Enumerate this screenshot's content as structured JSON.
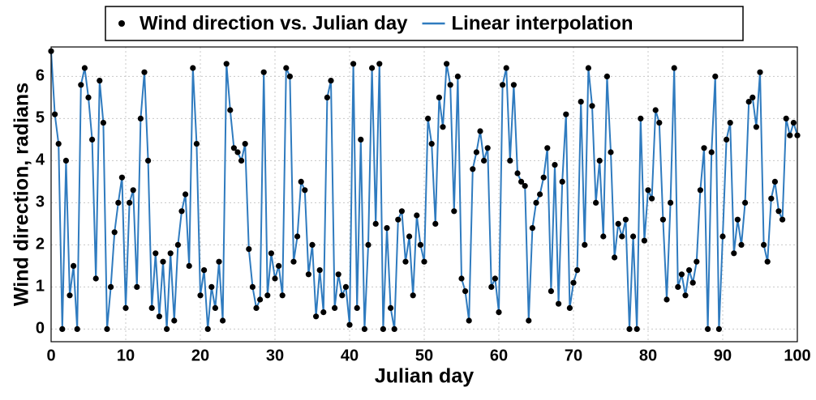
{
  "chart_data": {
    "type": "scatter-line",
    "xlabel": "Julian day",
    "ylabel": "Wind direction, radians",
    "legend": [
      {
        "name": "Wind direction vs. Julian day",
        "color": "#000000",
        "marker": "dot"
      },
      {
        "name": "Linear interpolation",
        "color": "#2f7bbf",
        "marker": "line"
      }
    ],
    "xlim": [
      0,
      100
    ],
    "ylim": [
      -0.3,
      6.7
    ],
    "xticks": [
      0,
      10,
      20,
      30,
      40,
      50,
      60,
      70,
      80,
      90,
      100
    ],
    "yticks": [
      0,
      1,
      2,
      3,
      4,
      5,
      6
    ],
    "grid": true,
    "x": [
      0,
      0.5,
      1,
      1.5,
      2,
      2.5,
      3,
      3.5,
      4,
      4.5,
      5,
      5.5,
      6,
      6.5,
      7,
      7.5,
      8,
      8.5,
      9,
      9.5,
      10,
      10.5,
      11,
      11.5,
      12,
      12.5,
      13,
      13.5,
      14,
      14.5,
      15,
      15.5,
      16,
      16.5,
      17,
      17.5,
      18,
      18.5,
      19,
      19.5,
      20,
      20.5,
      21,
      21.5,
      22,
      22.5,
      23,
      23.5,
      24,
      24.5,
      25,
      25.5,
      26,
      26.5,
      27,
      27.5,
      28,
      28.5,
      29,
      29.5,
      30,
      30.5,
      31,
      31.5,
      32,
      32.5,
      33,
      33.5,
      34,
      34.5,
      35,
      35.5,
      36,
      36.5,
      37,
      37.5,
      38,
      38.5,
      39,
      39.5,
      40,
      40.5,
      41,
      41.5,
      42,
      42.5,
      43,
      43.5,
      44,
      44.5,
      45,
      45.5,
      46,
      46.5,
      47,
      47.5,
      48,
      48.5,
      49,
      49.5,
      50,
      50.5,
      51,
      51.5,
      52,
      52.5,
      53,
      53.5,
      54,
      54.5,
      55,
      55.5,
      56,
      56.5,
      57,
      57.5,
      58,
      58.5,
      59,
      59.5,
      60,
      60.5,
      61,
      61.5,
      62,
      62.5,
      63,
      63.5,
      64,
      64.5,
      65,
      65.5,
      66,
      66.5,
      67,
      67.5,
      68,
      68.5,
      69,
      69.5,
      70,
      70.5,
      71,
      71.5,
      72,
      72.5,
      73,
      73.5,
      74,
      74.5,
      75,
      75.5,
      76,
      76.5,
      77,
      77.5,
      78,
      78.5,
      79,
      79.5,
      80,
      80.5,
      81,
      81.5,
      82,
      82.5,
      83,
      83.5,
      84,
      84.5,
      85,
      85.5,
      86,
      86.5,
      87,
      87.5,
      88,
      88.5,
      89,
      89.5,
      90,
      90.5,
      91,
      91.5,
      92,
      92.5,
      93,
      93.5,
      94,
      94.5,
      95,
      95.5,
      96,
      96.5,
      97,
      97.5,
      98,
      98.5,
      99,
      99.5,
      100
    ],
    "values": [
      6.6,
      5.1,
      4.4,
      0,
      4,
      0.8,
      1.5,
      0,
      5.8,
      6.2,
      5.5,
      4.5,
      1.2,
      5.9,
      4.9,
      0,
      1,
      2.3,
      3,
      3.6,
      0.5,
      3,
      3.3,
      1,
      5,
      6.1,
      4,
      0.5,
      1.8,
      0.3,
      1.6,
      0,
      1.8,
      0.2,
      2,
      2.8,
      3.2,
      1.5,
      6.2,
      4.4,
      0.8,
      1.4,
      0,
      1,
      0.5,
      1.6,
      0.2,
      6.3,
      5.2,
      4.3,
      4.2,
      4,
      4.4,
      1.9,
      1,
      0.5,
      0.7,
      6.1,
      0.8,
      1.8,
      1.2,
      1.5,
      0.8,
      6.2,
      6,
      1.6,
      2.2,
      3.5,
      3.3,
      1.3,
      2,
      0.3,
      1.4,
      0.4,
      5.5,
      5.9,
      0.5,
      1.3,
      0.8,
      1,
      0.1,
      6.3,
      0.5,
      4.5,
      0,
      2,
      6.2,
      2.5,
      6.3,
      0,
      2.4,
      0.5,
      0,
      2.6,
      2.8,
      1.6,
      2.2,
      0.8,
      2.7,
      2,
      1.6,
      5,
      4.4,
      2.5,
      5.5,
      4.8,
      6.3,
      5.8,
      2.8,
      6,
      1.2,
      0.9,
      0.2,
      3.8,
      4.2,
      4.7,
      4,
      4.3,
      1,
      1.2,
      0.4,
      5.8,
      6.2,
      4,
      5.8,
      3.7,
      3.5,
      3.4,
      0.2,
      2.4,
      3,
      3.2,
      3.6,
      4.3,
      0.9,
      3.9,
      0.6,
      3.5,
      5.1,
      0.5,
      1.1,
      1.4,
      5.4,
      2,
      6.2,
      5.3,
      3,
      4,
      2.2,
      6,
      4.2,
      1.7,
      2.5,
      2.2,
      2.6,
      0,
      2.2,
      0,
      5,
      2.1,
      3.3,
      3.1,
      5.2,
      4.9,
      2.6,
      0.7,
      3,
      6.2,
      1,
      1.3,
      0.8,
      1.4,
      1.1,
      1.6,
      3.3,
      4.3,
      0,
      4.2,
      6,
      0,
      2.2,
      4.5,
      4.9,
      1.8,
      2.6,
      2,
      3,
      5.4,
      5.5,
      4.8,
      6.1,
      2,
      1.6,
      3.1,
      3.5,
      2.8,
      2.6,
      5,
      4.6,
      4.9,
      4.6
    ]
  }
}
